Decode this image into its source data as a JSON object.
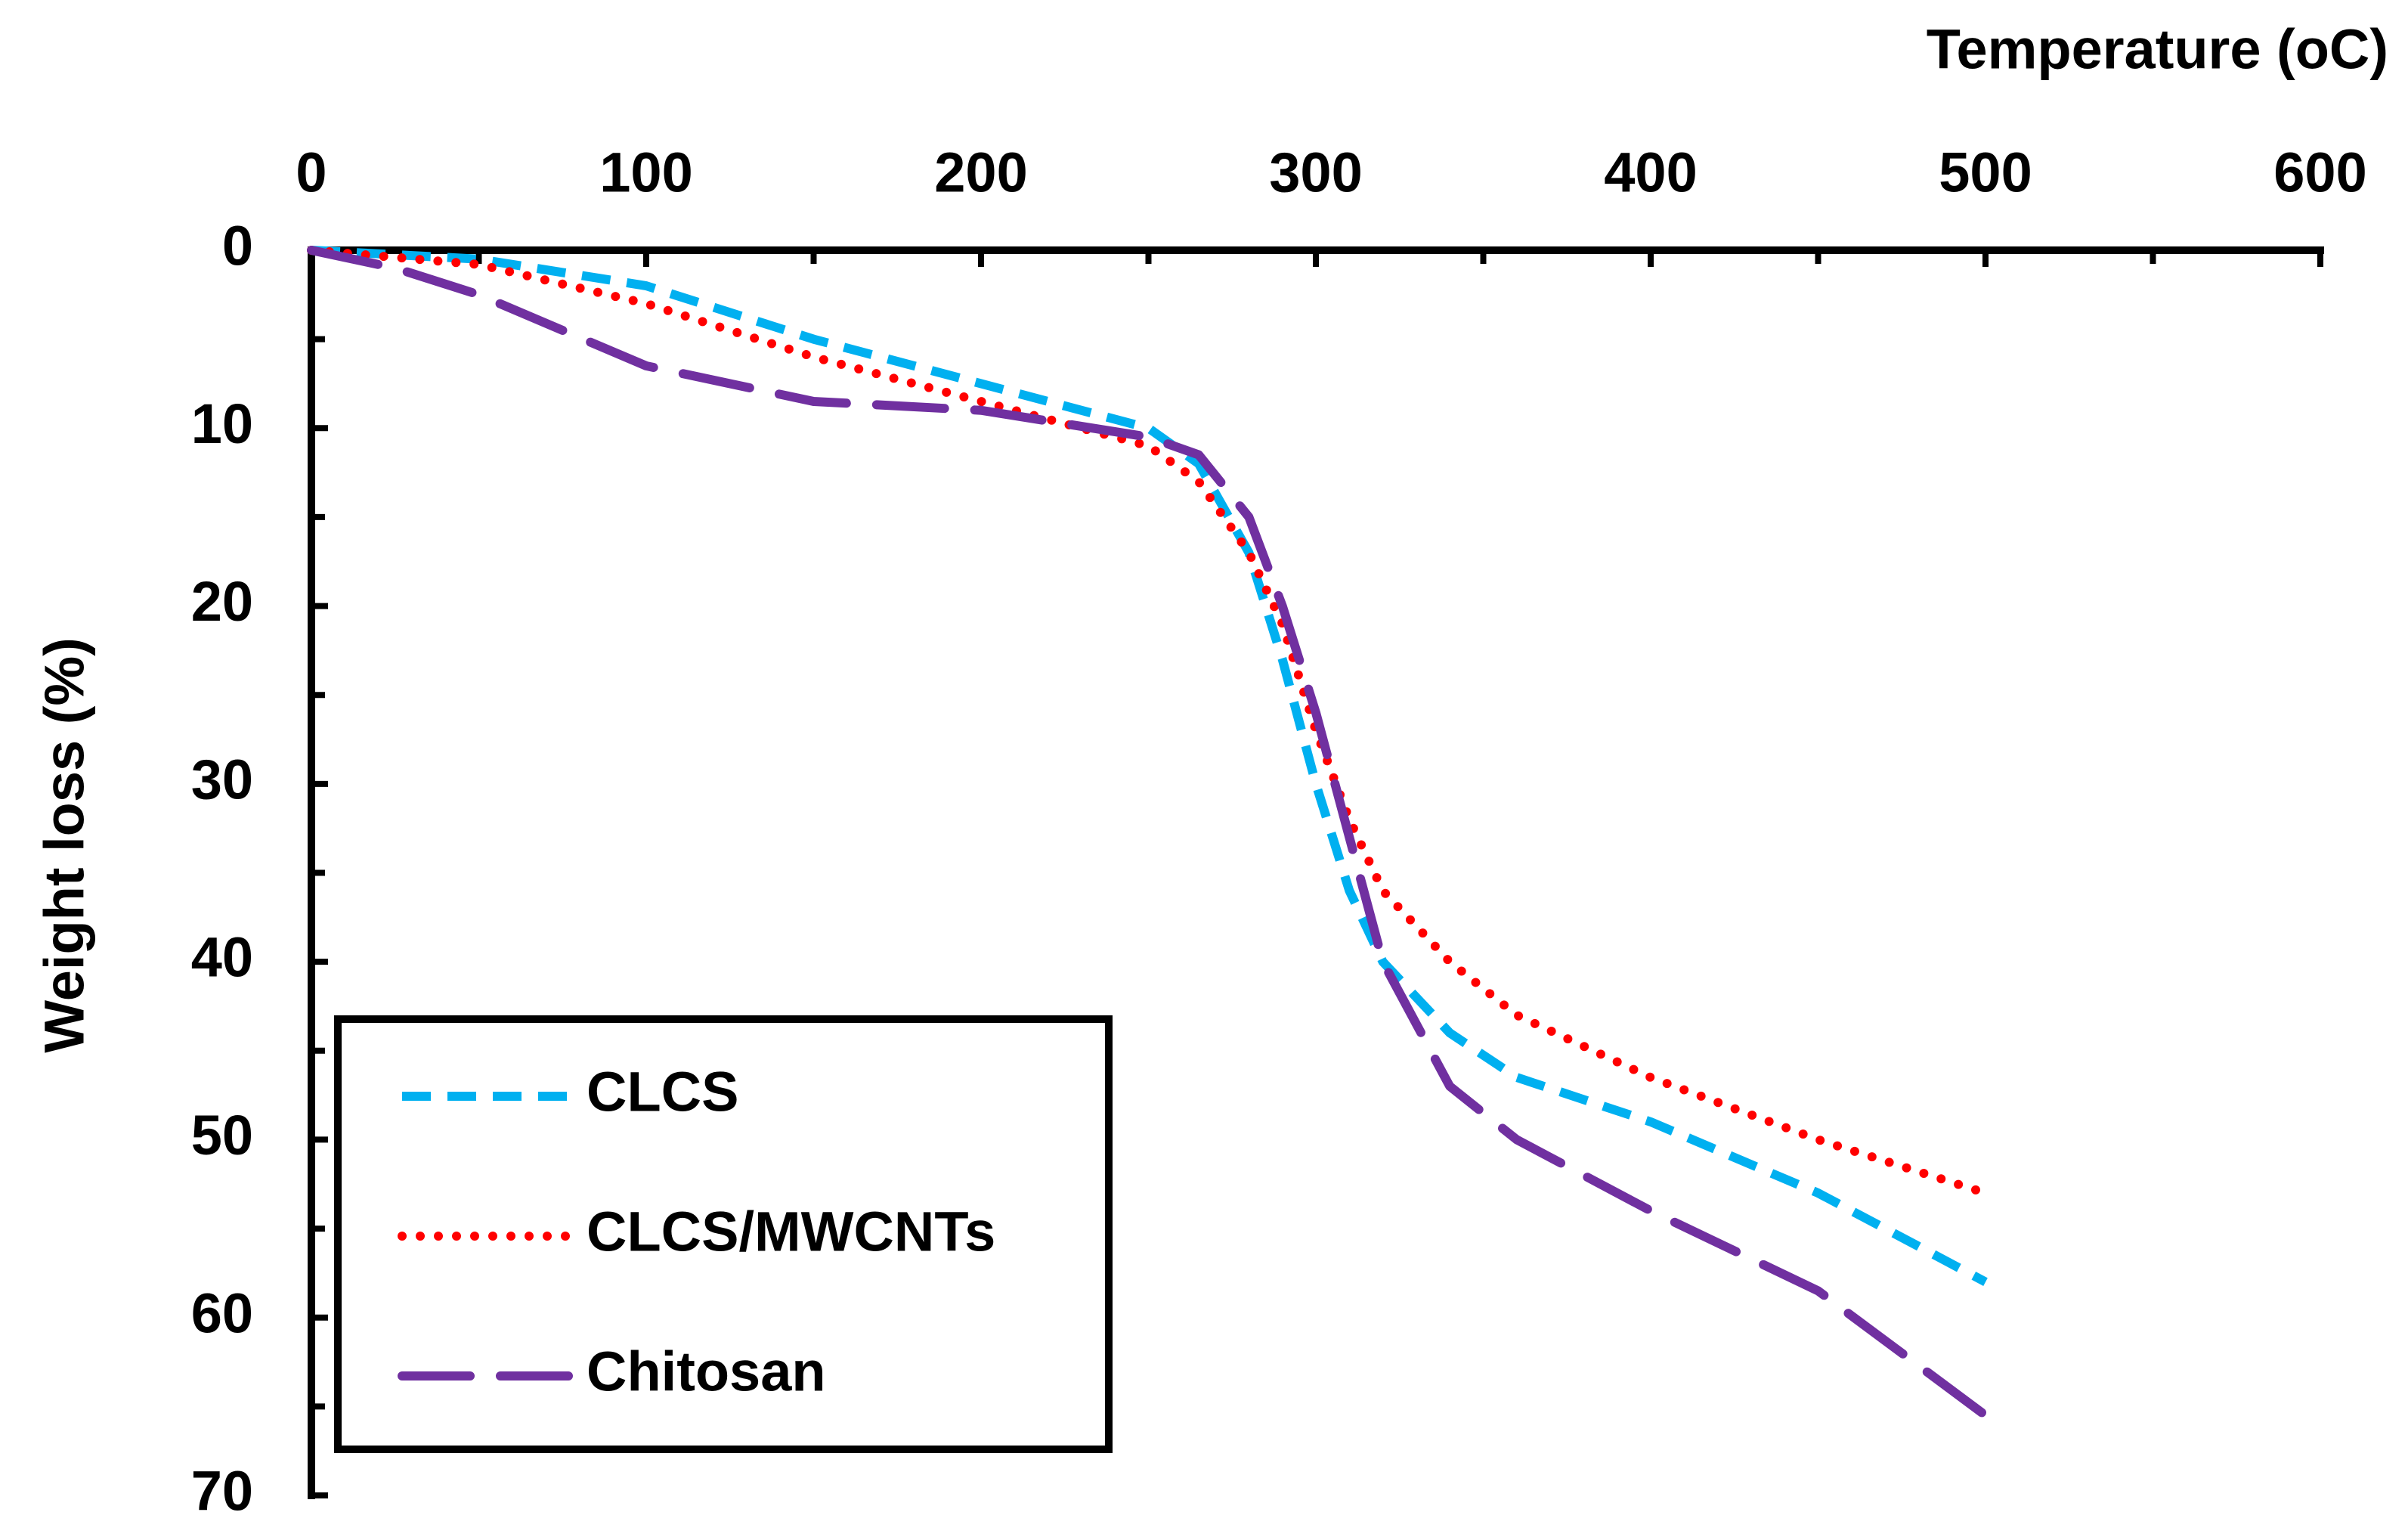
{
  "chart_data": {
    "type": "line",
    "x_label": "Temperature (oC)",
    "y_label": "Weight loss (%)",
    "xlim": [
      0,
      600
    ],
    "xticks": [
      0,
      100,
      200,
      300,
      400,
      500,
      600
    ],
    "ylim": [
      0,
      70
    ],
    "yticks": [
      0,
      10,
      20,
      30,
      40,
      50,
      60,
      70
    ],
    "y_inverted": true,
    "x_axis_position": "top",
    "grid": false,
    "legend": "lower left",
    "series": [
      {
        "name": "CLCS",
        "color": "#00b0f0",
        "dash": "dashed",
        "x": [
          0,
          50,
          100,
          150,
          200,
          250,
          265,
          280,
          290,
          300,
          310,
          320,
          340,
          360,
          400,
          450,
          500
        ],
        "values": [
          0,
          0.5,
          2,
          5,
          7.5,
          10,
          12,
          17,
          23,
          30,
          36,
          40,
          44,
          46.5,
          49,
          53,
          58
        ]
      },
      {
        "name": "CLCS/MWCNTs",
        "color": "#ff0000",
        "dash": "dotted",
        "x": [
          0,
          50,
          100,
          150,
          200,
          250,
          265,
          280,
          290,
          300,
          310,
          320,
          340,
          360,
          400,
          450,
          500
        ],
        "values": [
          0,
          0.8,
          3,
          6,
          8.5,
          11,
          13,
          17,
          21,
          27,
          32,
          36,
          40,
          43,
          46.5,
          50,
          53
        ]
      },
      {
        "name": "Chitosan",
        "color": "#7030a0",
        "dash": "longdash",
        "x": [
          0,
          25,
          50,
          100,
          150,
          200,
          250,
          265,
          280,
          290,
          300,
          310,
          320,
          340,
          360,
          400,
          450,
          500
        ],
        "values": [
          0,
          1,
          2.5,
          6.5,
          8.5,
          9,
          10.5,
          11.5,
          15,
          20,
          26,
          33,
          40,
          47,
          50,
          54,
          58.5,
          65.5
        ]
      }
    ]
  }
}
